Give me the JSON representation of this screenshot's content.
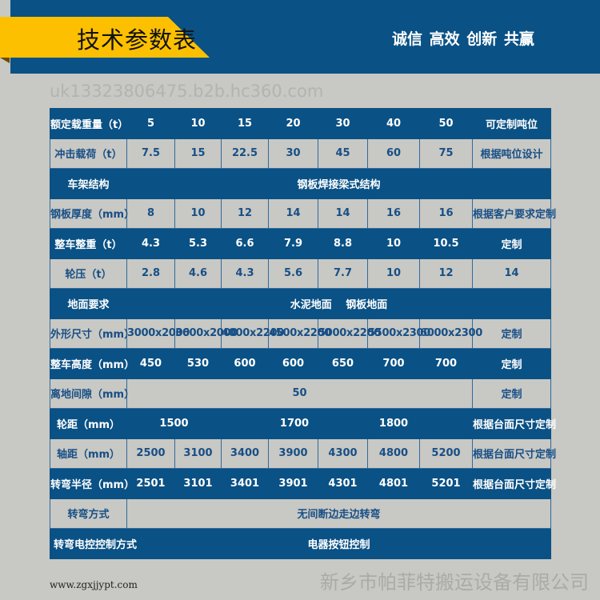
{
  "header": {
    "title": "技术参数表",
    "slogan": "诚信 高效 创新 共赢"
  },
  "colors": {
    "blue": "#0a5185",
    "yellow": "#fcc000",
    "grey": "#c8c8c4",
    "text_on_grey": "#174f86"
  },
  "table": {
    "rows": [
      {
        "style": "blue",
        "cells": [
          {
            "text": "额定载重量（t）",
            "span": 1
          },
          {
            "text": "5"
          },
          {
            "text": "10"
          },
          {
            "text": "15"
          },
          {
            "text": "20"
          },
          {
            "text": "30"
          },
          {
            "text": "40"
          },
          {
            "text": "50"
          },
          {
            "text": "可定制吨位"
          }
        ]
      },
      {
        "style": "grey",
        "cells": [
          {
            "text": "冲击载荷（t）"
          },
          {
            "text": "7.5"
          },
          {
            "text": "15"
          },
          {
            "text": "22.5"
          },
          {
            "text": "30"
          },
          {
            "text": "45"
          },
          {
            "text": "60"
          },
          {
            "text": "75"
          },
          {
            "text": "根据吨位设计"
          }
        ]
      },
      {
        "style": "blue",
        "cells": [
          {
            "text": "车架结构"
          },
          {
            "text": "钢板焊接梁式结构",
            "span": 8
          }
        ]
      },
      {
        "style": "grey",
        "cells": [
          {
            "text": "钢板厚度（mm）"
          },
          {
            "text": "8"
          },
          {
            "text": "10"
          },
          {
            "text": "12"
          },
          {
            "text": "14"
          },
          {
            "text": "14"
          },
          {
            "text": "16"
          },
          {
            "text": "16"
          },
          {
            "text": "根据客户要求定制"
          }
        ]
      },
      {
        "style": "blue",
        "cells": [
          {
            "text": "整车整重（t）"
          },
          {
            "text": "4.3"
          },
          {
            "text": "5.3"
          },
          {
            "text": "6.6"
          },
          {
            "text": "7.9"
          },
          {
            "text": "8.8"
          },
          {
            "text": "10"
          },
          {
            "text": "10.5"
          },
          {
            "text": "定制"
          }
        ]
      },
      {
        "style": "grey",
        "cells": [
          {
            "text": "轮压（t）"
          },
          {
            "text": "2.8"
          },
          {
            "text": "4.6"
          },
          {
            "text": "4.3"
          },
          {
            "text": "5.6"
          },
          {
            "text": "7.7"
          },
          {
            "text": "10"
          },
          {
            "text": "12"
          },
          {
            "text": "14"
          }
        ]
      },
      {
        "style": "blue",
        "cells": [
          {
            "text": "地面要求"
          },
          {
            "text": "水泥地面　 钢板地面",
            "span": 8
          }
        ]
      },
      {
        "style": "grey",
        "cells": [
          {
            "text": "外形尺寸（mm）"
          },
          {
            "text": "3000x2000"
          },
          {
            "text": "3600x2000"
          },
          {
            "text": "4000x2200"
          },
          {
            "text": "4500x2200"
          },
          {
            "text": "5000x2200"
          },
          {
            "text": "5500x2300"
          },
          {
            "text": "6000x2300"
          },
          {
            "text": "定制"
          }
        ]
      },
      {
        "style": "blue",
        "cells": [
          {
            "text": "整车高度（mm）"
          },
          {
            "text": "450"
          },
          {
            "text": "530"
          },
          {
            "text": "600"
          },
          {
            "text": "600"
          },
          {
            "text": "650"
          },
          {
            "text": "700"
          },
          {
            "text": "700"
          },
          {
            "text": "定制"
          }
        ]
      },
      {
        "style": "grey",
        "cells": [
          {
            "text": "离地间隙（mm）"
          },
          {
            "text": "50",
            "span": 7
          },
          {
            "text": "定制"
          }
        ]
      },
      {
        "style": "blue",
        "cells": [
          {
            "text": "轮距（mm）"
          },
          {
            "text": "1500",
            "span": 2
          },
          {
            "text": "1700",
            "span": 3
          },
          {
            "text": "1800",
            "span": 1
          },
          {
            "text": "",
            "span": 1
          },
          {
            "text": "根据台面尺寸定制"
          }
        ]
      },
      {
        "style": "grey",
        "cells": [
          {
            "text": "轴距（mm）"
          },
          {
            "text": "2500"
          },
          {
            "text": "3100"
          },
          {
            "text": "3400"
          },
          {
            "text": "3900"
          },
          {
            "text": "4300"
          },
          {
            "text": "4800"
          },
          {
            "text": "5200"
          },
          {
            "text": "根据台面尺寸定制"
          }
        ]
      },
      {
        "style": "blue",
        "cells": [
          {
            "text": "转弯半径（mm）"
          },
          {
            "text": "2501"
          },
          {
            "text": "3101"
          },
          {
            "text": "3401"
          },
          {
            "text": "3901"
          },
          {
            "text": "4301"
          },
          {
            "text": "4801"
          },
          {
            "text": "5201"
          },
          {
            "text": "根据台面尺寸定制"
          }
        ]
      },
      {
        "style": "grey",
        "cells": [
          {
            "text": "转弯方式"
          },
          {
            "text": "无间断边走边转弯",
            "span": 8
          }
        ]
      },
      {
        "style": "blue",
        "cells": [
          {
            "text": "转弯电控控制方式"
          },
          {
            "text": "电器按钮控制",
            "span": 8
          }
        ]
      }
    ]
  },
  "watermark": {
    "company": "新乡市帕菲特搬运设备有限公司",
    "site": "www.zgxjjypt.com",
    "shop": "uk13323806475.b2b.hc360.com"
  }
}
